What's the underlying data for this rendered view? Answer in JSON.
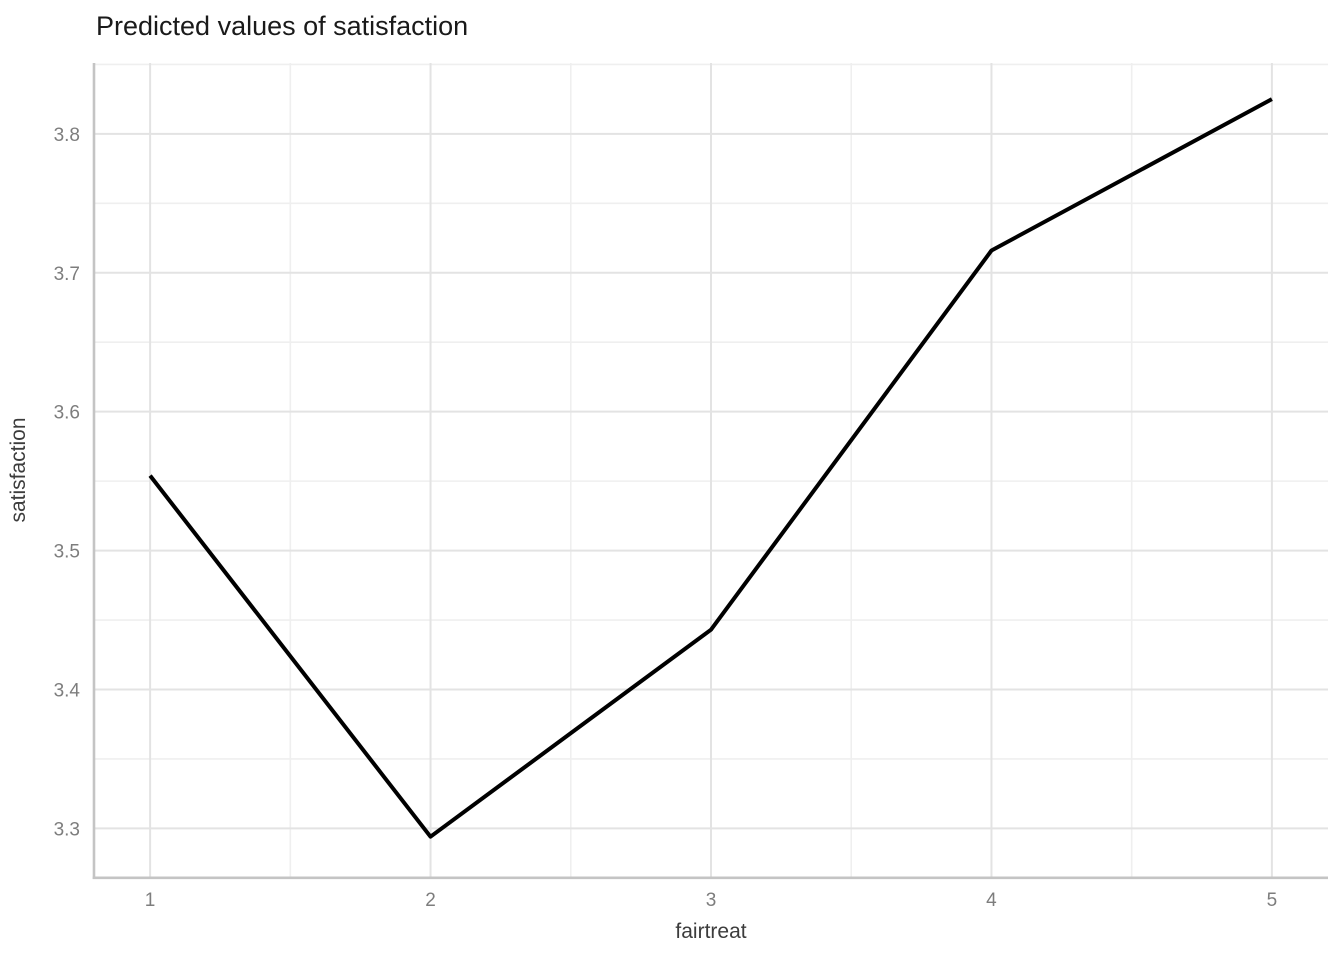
{
  "chart_data": {
    "type": "line",
    "title": "Predicted values of satisfaction",
    "xlabel": "fairtreat",
    "ylabel": "satisfaction",
    "x": [
      1,
      2,
      3,
      4,
      5
    ],
    "y": [
      3.554,
      3.294,
      3.443,
      3.716,
      3.825
    ],
    "xlim": [
      0.8,
      5.2
    ],
    "ylim": [
      3.265,
      3.851
    ],
    "x_ticks": [
      1,
      2,
      3,
      4,
      5
    ],
    "x_tick_labels": [
      "1",
      "2",
      "3",
      "4",
      "5"
    ],
    "y_ticks": [
      3.3,
      3.4,
      3.5,
      3.6,
      3.7,
      3.8
    ],
    "y_tick_labels": [
      "3.3",
      "3.4",
      "3.5",
      "3.6",
      "3.7",
      "3.8"
    ],
    "x_minor_gridlines": [
      1.5,
      2.5,
      3.5,
      4.5
    ],
    "y_minor_gridlines": [
      3.35,
      3.45,
      3.55,
      3.65,
      3.75,
      3.85
    ],
    "grid": "on",
    "legend": "none",
    "style": {
      "line_color": "#000000",
      "major_grid_color": "#e3e3e3",
      "minor_grid_color": "#efefef",
      "axis_line_color": "#c4c4c4",
      "tick_label_color": "#7d7d7d",
      "axis_title_color": "#3c3c3c",
      "title_color": "#1a1a1a",
      "background": "#ffffff"
    }
  }
}
